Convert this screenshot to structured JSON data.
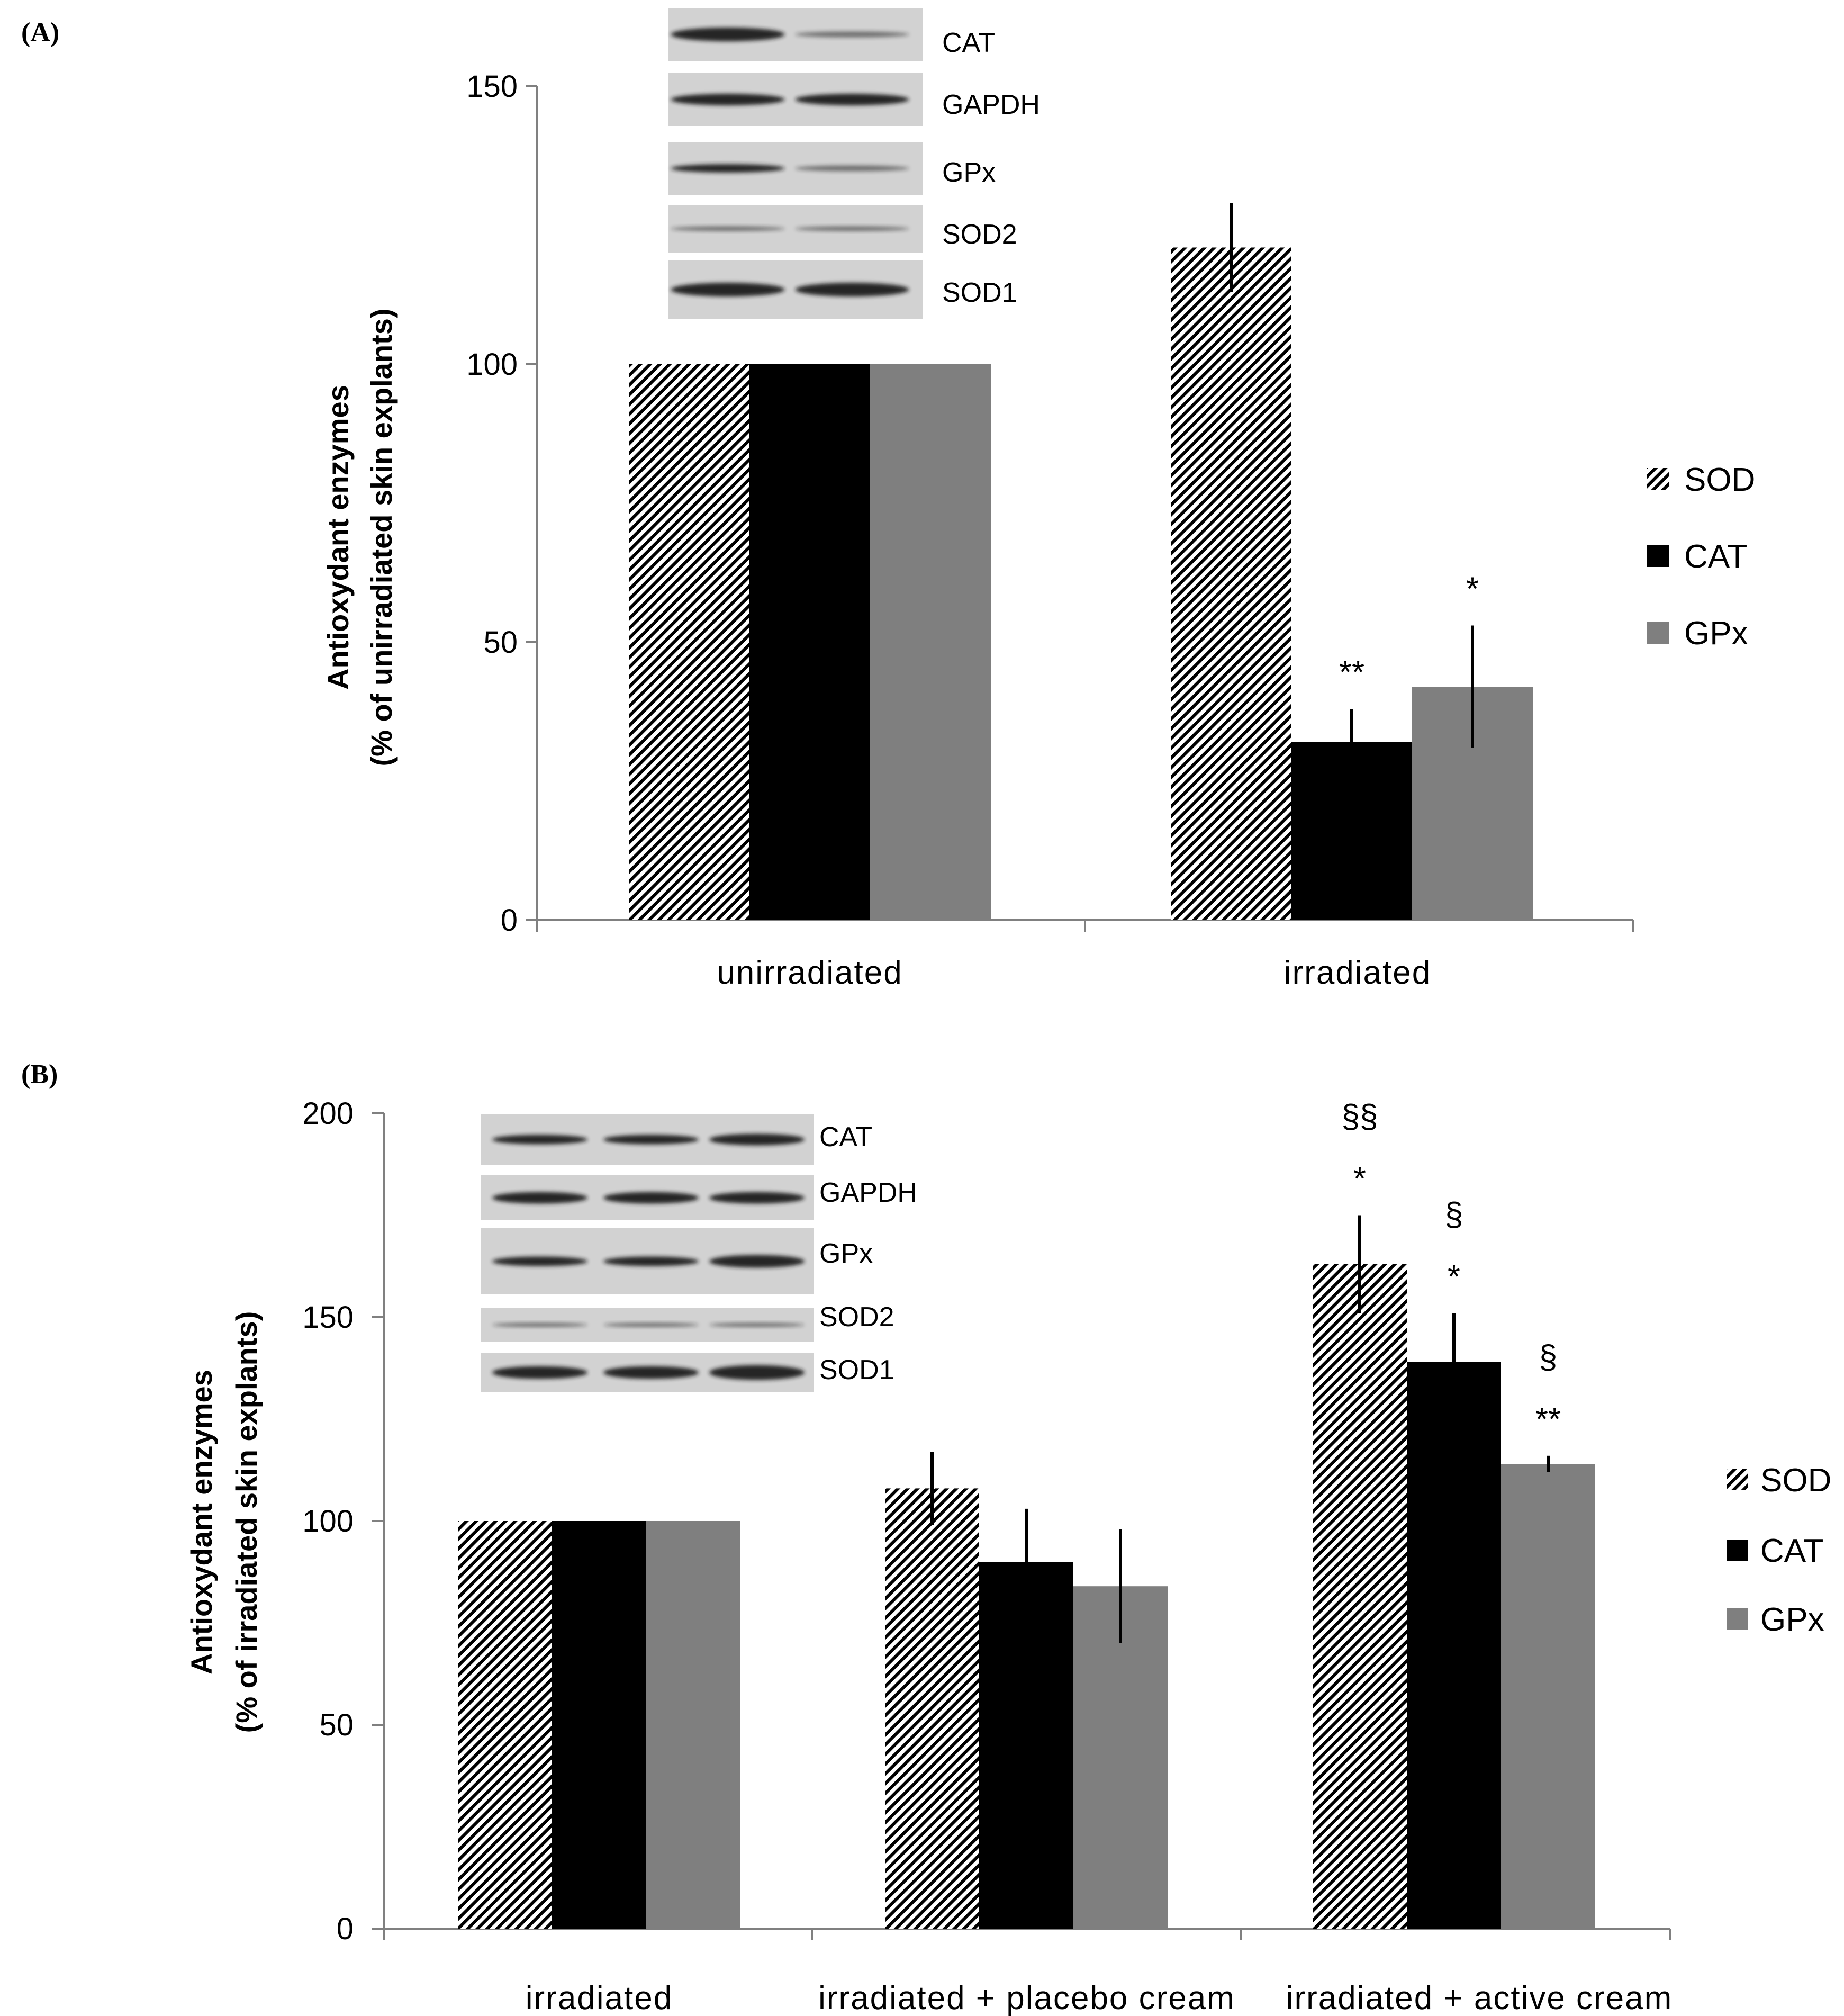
{
  "colors": {
    "SOD": "#ffffff",
    "CAT": "#000000",
    "GPx": "#7f7f7f",
    "axis": "#808080",
    "blot_bg": "#d2d2d2",
    "band": "#1a1a1a"
  },
  "chart_data": [
    {
      "panel": "(A)",
      "type": "bar",
      "categories": [
        "unirradiated",
        "irradiated"
      ],
      "series": [
        {
          "name": "SOD",
          "values": [
            100,
            121
          ],
          "errors": [
            0,
            8
          ],
          "pattern": "hatched"
        },
        {
          "name": "CAT",
          "values": [
            100,
            32
          ],
          "errors": [
            0,
            6
          ]
        },
        {
          "name": "GPx",
          "values": [
            100,
            42
          ],
          "errors": [
            0,
            11
          ]
        }
      ],
      "ylabel_line1": "Antioxydant  enzymes",
      "ylabel_line2": "(% of unirradiated  skin explants)",
      "ylim": [
        0,
        150
      ],
      "yticks": [
        "0",
        "50",
        "100",
        "150"
      ],
      "annotations": [
        {
          "category": "irradiated",
          "series": "CAT",
          "text": "**"
        },
        {
          "category": "irradiated",
          "series": "GPx",
          "text": "*"
        }
      ],
      "legend": [
        "SOD",
        "CAT",
        "GPx"
      ],
      "blot_labels": [
        "CAT",
        "GAPDH",
        "GPx",
        "SOD2",
        "SOD1"
      ]
    },
    {
      "panel": "(B)",
      "type": "bar",
      "categories": [
        "irradiated",
        "irradiated + placebo cream",
        "irradiated + active cream"
      ],
      "series": [
        {
          "name": "SOD",
          "values": [
            100,
            108,
            163
          ],
          "errors": [
            0,
            9,
            12
          ],
          "pattern": "hatched"
        },
        {
          "name": "CAT",
          "values": [
            100,
            90,
            139
          ],
          "errors": [
            0,
            13,
            12
          ]
        },
        {
          "name": "GPx",
          "values": [
            100,
            84,
            114
          ],
          "errors": [
            0,
            14,
            2
          ]
        }
      ],
      "ylabel_line1": "Antioxydant  enzymes",
      "ylabel_line2": "(% of irradiated  skin explants)",
      "ylim": [
        0,
        200
      ],
      "yticks": [
        "0",
        "50",
        "100",
        "150",
        "200"
      ],
      "annotations": [
        {
          "category": "irradiated + active cream",
          "series": "SOD",
          "text": "*"
        },
        {
          "category": "irradiated + active cream",
          "series": "SOD",
          "text": "§§"
        },
        {
          "category": "irradiated + active cream",
          "series": "CAT",
          "text": "*"
        },
        {
          "category": "irradiated + active cream",
          "series": "CAT",
          "text": "§"
        },
        {
          "category": "irradiated + active cream",
          "series": "GPx",
          "text": "**"
        },
        {
          "category": "irradiated + active cream",
          "series": "GPx",
          "text": "§"
        }
      ],
      "legend": [
        "SOD",
        "CAT",
        "GPx"
      ],
      "blot_labels": [
        "CAT",
        "GAPDH",
        "GPx",
        "SOD2",
        "SOD1"
      ]
    }
  ]
}
